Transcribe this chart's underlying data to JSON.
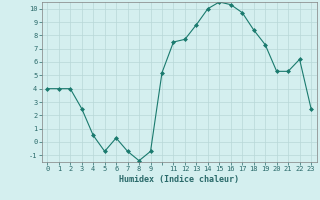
{
  "x": [
    0,
    1,
    2,
    3,
    4,
    5,
    6,
    7,
    8,
    9,
    10,
    11,
    12,
    13,
    14,
    15,
    16,
    17,
    18,
    19,
    20,
    21,
    22,
    23
  ],
  "y": [
    4,
    4,
    4,
    2.5,
    0.5,
    -0.7,
    0.3,
    -0.7,
    -1.4,
    -0.7,
    5.2,
    7.5,
    7.7,
    8.8,
    10.0,
    10.5,
    10.3,
    9.7,
    8.4,
    7.3,
    5.3,
    5.3,
    6.2,
    2.5
  ],
  "xlabel": "Humidex (Indice chaleur)",
  "xlim": [
    -0.5,
    23.5
  ],
  "ylim": [
    -1.5,
    10.5
  ],
  "line_color": "#1a7a6e",
  "marker_color": "#1a7a6e",
  "bg_color": "#d4efef",
  "grid_color": "#b8d8d8",
  "yticks": [
    -1,
    0,
    1,
    2,
    3,
    4,
    5,
    6,
    7,
    8,
    9,
    10
  ]
}
